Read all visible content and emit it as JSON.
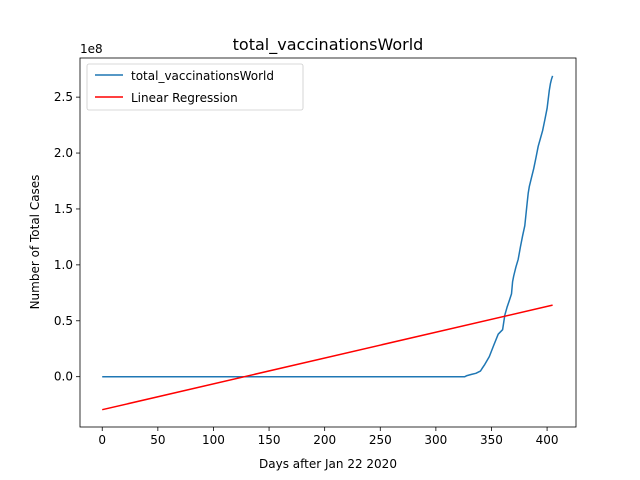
{
  "chart_data": {
    "type": "line",
    "title": "total_vaccinationsWorld",
    "xlabel": "Days after Jan 22 2020",
    "ylabel": "Number of Total Cases",
    "y_offset_label": "1e8",
    "y_scale": 100000000,
    "xlim": [
      -20,
      426
    ],
    "ylim": [
      -0.45,
      2.85
    ],
    "x_ticks": [
      0,
      50,
      100,
      150,
      200,
      250,
      300,
      350,
      400
    ],
    "x_tick_labels": [
      "0",
      "50",
      "100",
      "150",
      "200",
      "250",
      "300",
      "350",
      "400"
    ],
    "y_ticks": [
      0.0,
      0.5,
      1.0,
      1.5,
      2.0,
      2.5
    ],
    "y_tick_labels": [
      "0.0",
      "0.5",
      "1.0",
      "1.5",
      "2.0",
      "2.5"
    ],
    "grid": false,
    "legend_position": "top-left",
    "series": [
      {
        "name": "total_vaccinationsWorld",
        "color": "#1f77b4",
        "x": [
          0,
          50,
          100,
          150,
          200,
          250,
          300,
          326,
          328,
          332,
          336,
          340,
          342,
          344,
          348,
          352,
          356,
          360,
          362,
          364,
          366,
          368,
          369,
          370,
          372,
          374,
          376,
          378,
          380,
          382,
          383,
          384,
          386,
          388,
          390,
          392,
          394,
          396,
          398,
          400,
          402,
          403,
          404,
          405
        ],
        "y": [
          0,
          0,
          0,
          0,
          0,
          0,
          0,
          0,
          0.01,
          0.02,
          0.03,
          0.05,
          0.08,
          0.11,
          0.18,
          0.28,
          0.38,
          0.42,
          0.55,
          0.62,
          0.68,
          0.74,
          0.85,
          0.9,
          0.98,
          1.05,
          1.16,
          1.26,
          1.35,
          1.55,
          1.64,
          1.7,
          1.78,
          1.86,
          1.96,
          2.06,
          2.13,
          2.2,
          2.3,
          2.4,
          2.56,
          2.62,
          2.66,
          2.69
        ]
      },
      {
        "name": "Linear Regression",
        "color": "#ff0000",
        "x": [
          0,
          405
        ],
        "y": [
          -0.295,
          0.64
        ]
      }
    ]
  }
}
